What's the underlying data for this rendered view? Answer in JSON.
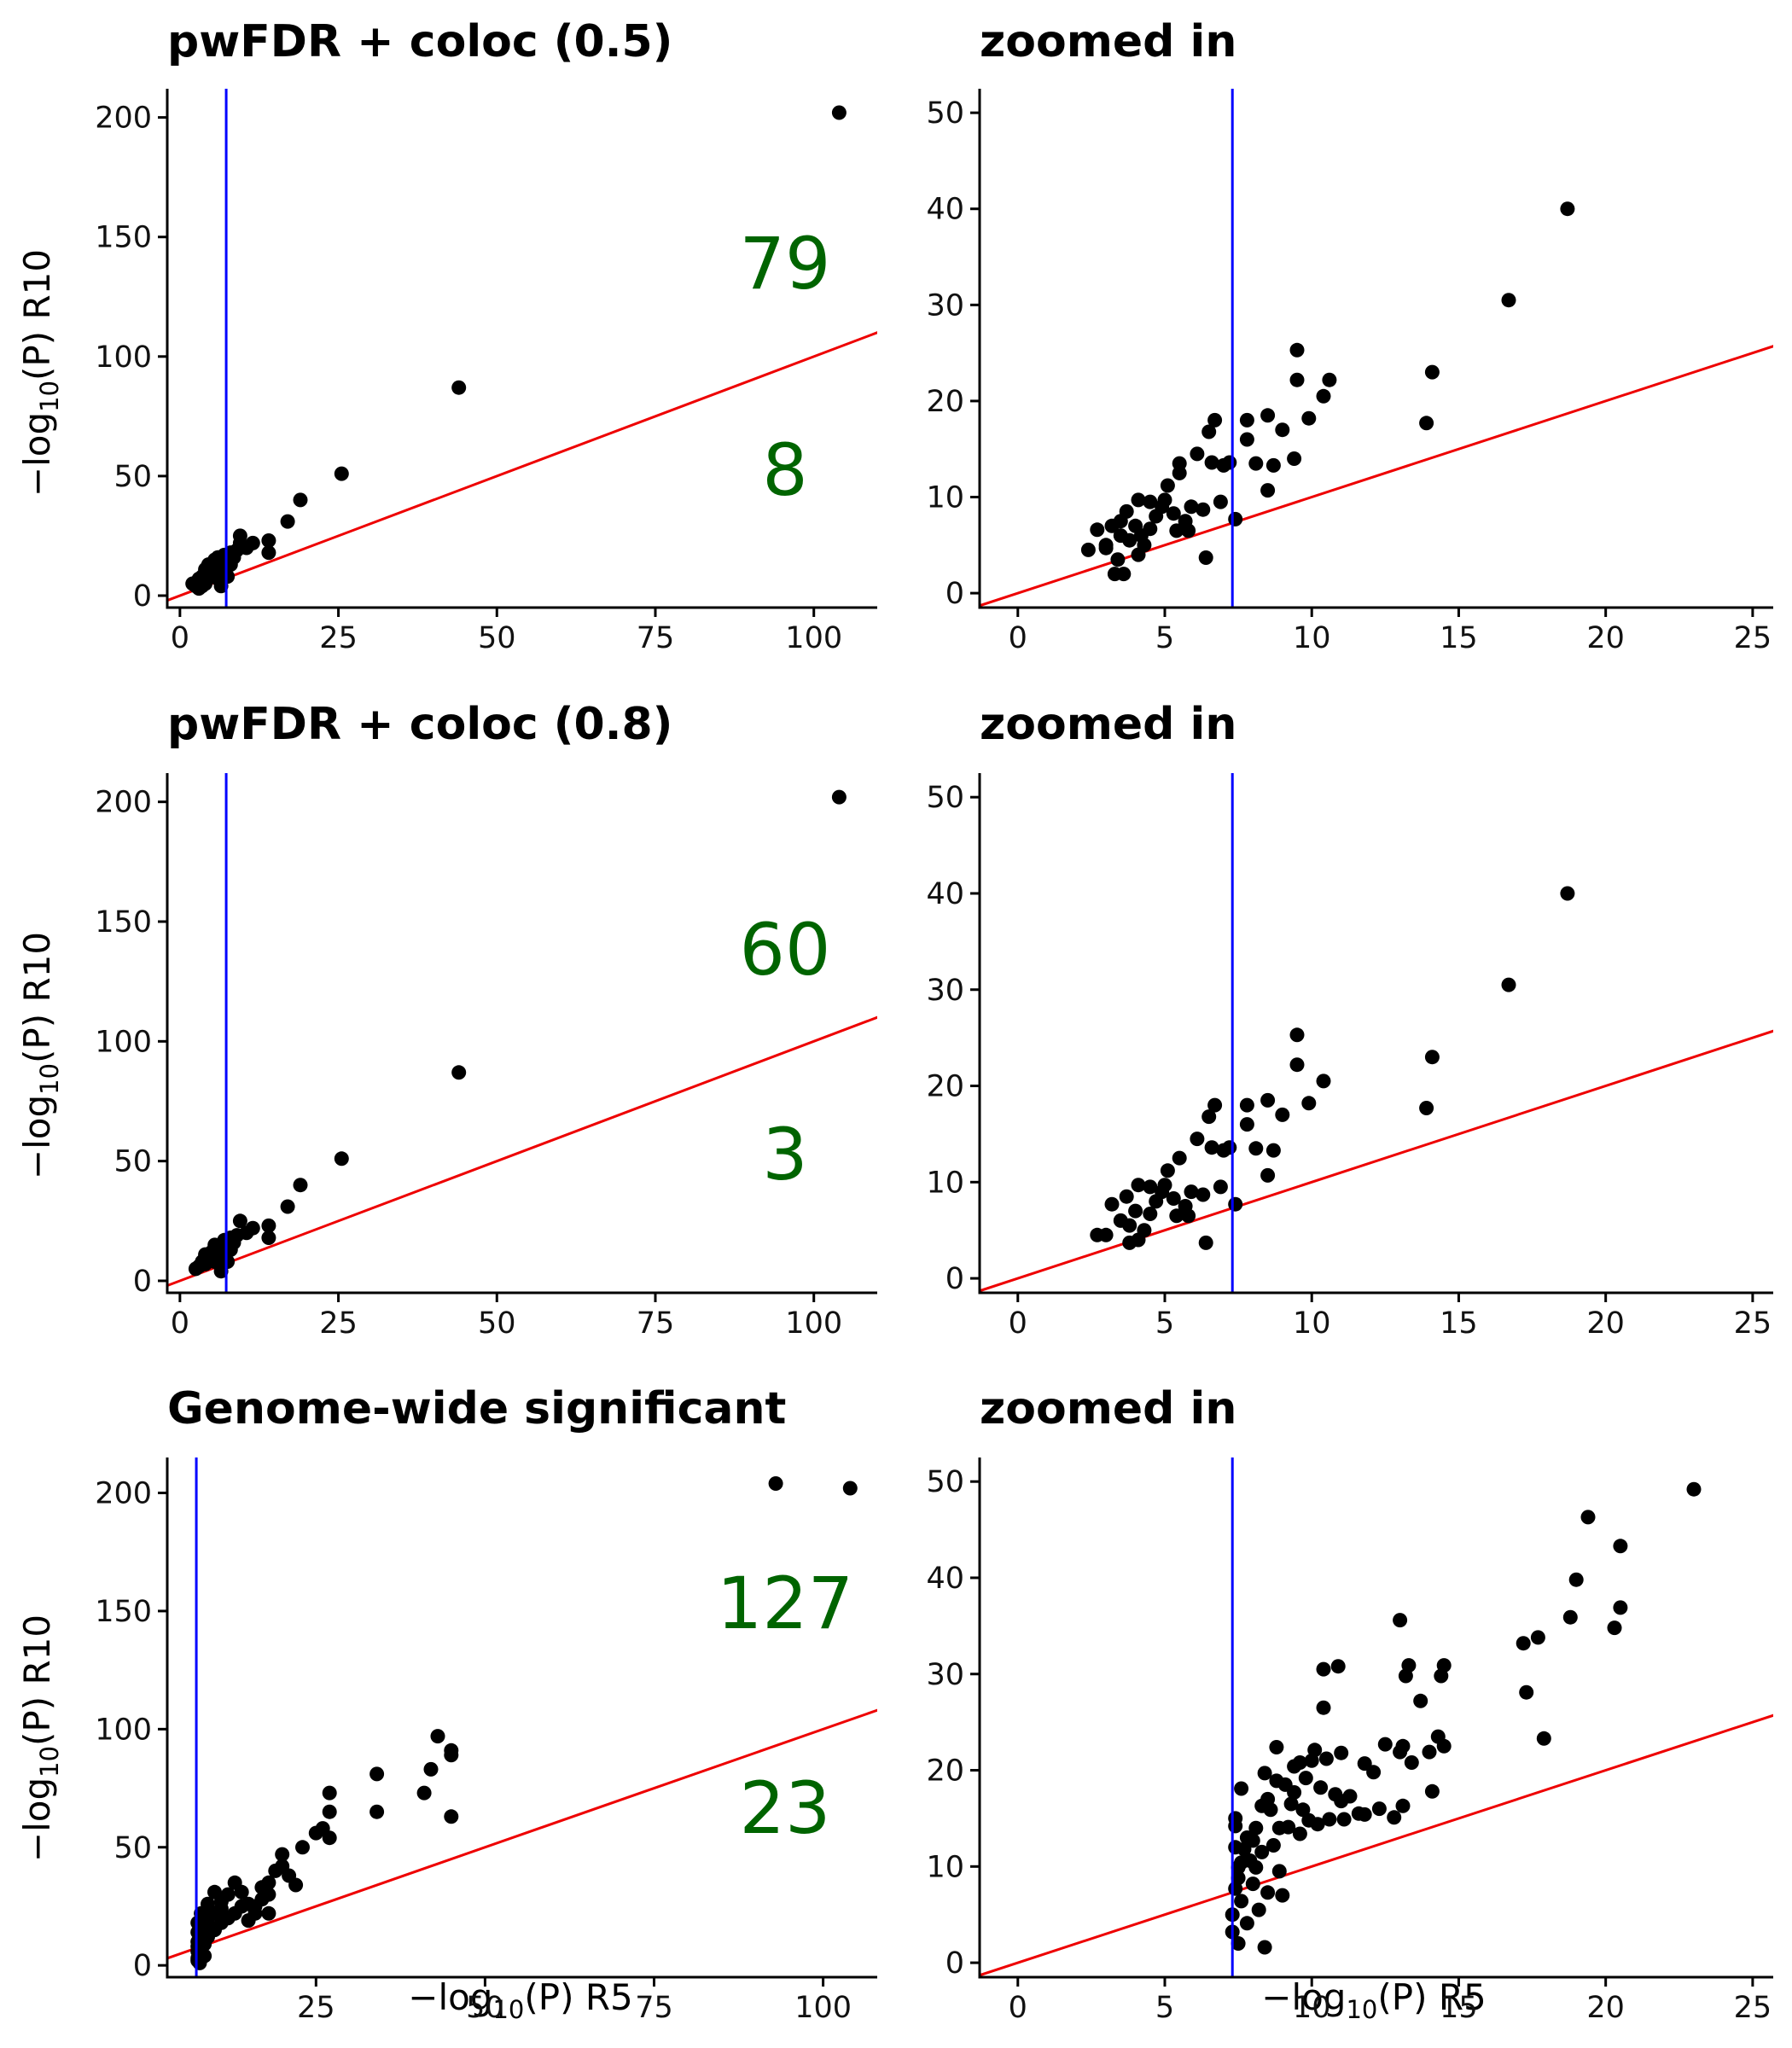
{
  "figure": {
    "accent_colors": {
      "points": "#000000",
      "threshold_line": "#0000ff",
      "reference_line": "#ee0000",
      "count_text": "#006400"
    }
  },
  "chart_data": [
    {
      "id": "p1",
      "type": "scatter",
      "title": "pwFDR + coloc (0.5)",
      "xlabel": "",
      "ylabel": "-log10(P) R10",
      "xlim": [
        -2,
        110
      ],
      "ylim": [
        -5,
        212
      ],
      "xticks": [
        0,
        25,
        50,
        75,
        100
      ],
      "yticks": [
        0,
        50,
        100,
        150,
        200
      ],
      "vline": 7.3,
      "ref_slope": 1,
      "counts": {
        "above": "79",
        "below": "8"
      },
      "points": [
        [
          104,
          202
        ],
        [
          44,
          87
        ],
        [
          25.5,
          51
        ],
        [
          19,
          40
        ],
        [
          17,
          31
        ],
        [
          14,
          23
        ],
        [
          14,
          18
        ],
        [
          11.5,
          22
        ],
        [
          10.5,
          20
        ],
        [
          9.5,
          25
        ],
        [
          9.5,
          22
        ],
        [
          9,
          19
        ],
        [
          8.5,
          16
        ],
        [
          8,
          18
        ],
        [
          7.5,
          14
        ],
        [
          7,
          17
        ],
        [
          6.5,
          13
        ],
        [
          6,
          11
        ],
        [
          6,
          16
        ],
        [
          5.5,
          15
        ],
        [
          5,
          12
        ],
        [
          5,
          10
        ],
        [
          4.5,
          13
        ],
        [
          4.5,
          9
        ],
        [
          4,
          7
        ],
        [
          4,
          11
        ],
        [
          3.5,
          8
        ],
        [
          3.5,
          4
        ],
        [
          3,
          6
        ],
        [
          3,
          3
        ],
        [
          2.5,
          4
        ],
        [
          2.5,
          5
        ],
        [
          2,
          5
        ],
        [
          3,
          7
        ],
        [
          4,
          5
        ],
        [
          6.5,
          4
        ],
        [
          6,
          7
        ],
        [
          7.5,
          8
        ],
        [
          5.5,
          8
        ],
        [
          8,
          13
        ]
      ]
    },
    {
      "id": "p2",
      "type": "scatter",
      "title": "zoomed in",
      "xlabel": "",
      "ylabel": "",
      "xlim": [
        -1.3,
        25.7
      ],
      "ylim": [
        -1.5,
        52.5
      ],
      "xticks": [
        0,
        5,
        10,
        15,
        20,
        25
      ],
      "yticks": [
        0,
        10,
        20,
        30,
        40,
        50
      ],
      "vline": 7.3,
      "ref_slope": 1,
      "points": [
        [
          18.7,
          40
        ],
        [
          16.7,
          30.5
        ],
        [
          14.1,
          23
        ],
        [
          13.9,
          17.7
        ],
        [
          10.6,
          22.2
        ],
        [
          10.4,
          20.5
        ],
        [
          9.9,
          18.2
        ],
        [
          9.5,
          25.3
        ],
        [
          9.5,
          22.2
        ],
        [
          9.4,
          14
        ],
        [
          9,
          17
        ],
        [
          8.7,
          13.3
        ],
        [
          8.5,
          10.7
        ],
        [
          8.5,
          18.5
        ],
        [
          8.1,
          13.5
        ],
        [
          7.8,
          16
        ],
        [
          7.8,
          18
        ],
        [
          7.4,
          7.7
        ],
        [
          7.2,
          13.6
        ],
        [
          7,
          13.3
        ],
        [
          6.9,
          9.5
        ],
        [
          6.7,
          18
        ],
        [
          6.6,
          13.6
        ],
        [
          6.5,
          16.8
        ],
        [
          6.4,
          3.7
        ],
        [
          6.3,
          8.7
        ],
        [
          6.1,
          14.5
        ],
        [
          5.9,
          9
        ],
        [
          5.7,
          7.5
        ],
        [
          5.5,
          12.5
        ],
        [
          5.5,
          13.5
        ],
        [
          5.4,
          6.5
        ],
        [
          5.3,
          8.3
        ],
        [
          5.1,
          11.2
        ],
        [
          5,
          9.7
        ],
        [
          4.9,
          9
        ],
        [
          4.7,
          8
        ],
        [
          4.5,
          6.7
        ],
        [
          4.5,
          9.5
        ],
        [
          4.3,
          5
        ],
        [
          4.1,
          9.7
        ],
        [
          4.1,
          4
        ],
        [
          4,
          7
        ],
        [
          3.8,
          5.5
        ],
        [
          3.7,
          8.5
        ],
        [
          3.5,
          6
        ],
        [
          3.5,
          7.5
        ],
        [
          3.4,
          3.5
        ],
        [
          3.3,
          2
        ],
        [
          3.2,
          7
        ],
        [
          3,
          5
        ],
        [
          3,
          4.7
        ],
        [
          2.7,
          6.6
        ],
        [
          2.4,
          4.5
        ],
        [
          3.6,
          2
        ],
        [
          4.2,
          6
        ],
        [
          5.8,
          6.5
        ]
      ]
    },
    {
      "id": "p3",
      "type": "scatter",
      "title": "pwFDR + coloc (0.8)",
      "xlabel": "",
      "ylabel": "-log10(P) R10",
      "xlim": [
        -2,
        110
      ],
      "ylim": [
        -5,
        212
      ],
      "xticks": [
        0,
        25,
        50,
        75,
        100
      ],
      "yticks": [
        0,
        50,
        100,
        150,
        200
      ],
      "vline": 7.3,
      "ref_slope": 1,
      "counts": {
        "above": "60",
        "below": "3"
      },
      "points": [
        [
          104,
          202
        ],
        [
          44,
          87
        ],
        [
          25.5,
          51
        ],
        [
          19,
          40
        ],
        [
          17,
          31
        ],
        [
          14,
          23
        ],
        [
          14,
          18
        ],
        [
          11.5,
          22
        ],
        [
          10.5,
          20
        ],
        [
          9.5,
          25
        ],
        [
          9,
          19
        ],
        [
          8.5,
          16
        ],
        [
          8,
          18
        ],
        [
          7.5,
          14
        ],
        [
          7,
          17
        ],
        [
          6.5,
          13
        ],
        [
          6,
          11
        ],
        [
          5.5,
          15
        ],
        [
          5,
          12
        ],
        [
          5,
          10
        ],
        [
          4.5,
          9
        ],
        [
          4,
          7
        ],
        [
          4,
          11
        ],
        [
          3.5,
          8
        ],
        [
          3,
          6
        ],
        [
          2.5,
          5
        ],
        [
          6.5,
          4
        ],
        [
          7.5,
          8
        ],
        [
          5.5,
          8
        ],
        [
          8,
          13
        ]
      ]
    },
    {
      "id": "p4",
      "type": "scatter",
      "title": "zoomed in",
      "xlabel": "",
      "ylabel": "",
      "xlim": [
        -1.3,
        25.7
      ],
      "ylim": [
        -1.5,
        52.5
      ],
      "xticks": [
        0,
        5,
        10,
        15,
        20,
        25
      ],
      "yticks": [
        0,
        10,
        20,
        30,
        40,
        50
      ],
      "vline": 7.3,
      "ref_slope": 1,
      "points": [
        [
          18.7,
          40
        ],
        [
          16.7,
          30.5
        ],
        [
          14.1,
          23
        ],
        [
          13.9,
          17.7
        ],
        [
          10.4,
          20.5
        ],
        [
          9.9,
          18.2
        ],
        [
          9.5,
          25.3
        ],
        [
          9.5,
          22.2
        ],
        [
          9,
          17
        ],
        [
          8.7,
          13.3
        ],
        [
          8.5,
          10.7
        ],
        [
          8.5,
          18.5
        ],
        [
          8.1,
          13.5
        ],
        [
          7.8,
          16
        ],
        [
          7.8,
          18
        ],
        [
          7.4,
          7.7
        ],
        [
          7.2,
          13.6
        ],
        [
          7,
          13.3
        ],
        [
          6.9,
          9.5
        ],
        [
          6.7,
          18
        ],
        [
          6.6,
          13.6
        ],
        [
          6.5,
          16.8
        ],
        [
          6.4,
          3.7
        ],
        [
          6.3,
          8.7
        ],
        [
          6.1,
          14.5
        ],
        [
          5.9,
          9
        ],
        [
          5.7,
          7.5
        ],
        [
          5.5,
          12.5
        ],
        [
          5.4,
          6.5
        ],
        [
          5.3,
          8.3
        ],
        [
          5.1,
          11.2
        ],
        [
          5,
          9.7
        ],
        [
          4.9,
          9
        ],
        [
          4.7,
          8
        ],
        [
          4.5,
          6.7
        ],
        [
          4.5,
          9.5
        ],
        [
          4.3,
          5
        ],
        [
          4.1,
          9.7
        ],
        [
          4.1,
          4
        ],
        [
          4,
          7
        ],
        [
          3.8,
          5.5
        ],
        [
          3.7,
          8.5
        ],
        [
          3.5,
          6
        ],
        [
          3.2,
          7.7
        ],
        [
          3,
          4.5
        ],
        [
          2.7,
          4.5
        ],
        [
          5.8,
          6.5
        ],
        [
          3.8,
          3.7
        ]
      ]
    },
    {
      "id": "p5",
      "type": "scatter",
      "title": "Genome-wide significant",
      "xlabel": "-log10(P) R5",
      "ylabel": "-log10(P) R10",
      "xlim": [
        3,
        108
      ],
      "ylim": [
        -5,
        215
      ],
      "xticks": [
        25,
        50,
        75,
        100
      ],
      "yticks": [
        0,
        50,
        100,
        150,
        200
      ],
      "vline": 7.3,
      "ref_slope": 1,
      "counts": {
        "above": "127",
        "below": "23"
      },
      "points": [
        [
          93,
          204
        ],
        [
          104,
          202
        ],
        [
          43,
          97
        ],
        [
          45,
          91
        ],
        [
          45,
          89
        ],
        [
          42,
          83
        ],
        [
          41,
          73
        ],
        [
          45,
          63
        ],
        [
          34,
          81
        ],
        [
          34,
          65
        ],
        [
          27,
          73
        ],
        [
          27,
          65
        ],
        [
          26,
          58
        ],
        [
          27,
          54
        ],
        [
          25,
          56
        ],
        [
          23,
          50
        ],
        [
          20,
          47
        ],
        [
          20,
          42
        ],
        [
          19,
          40
        ],
        [
          18,
          35
        ],
        [
          17,
          33
        ],
        [
          17,
          28
        ],
        [
          16,
          22
        ],
        [
          15,
          26
        ],
        [
          14,
          31
        ],
        [
          13,
          35
        ],
        [
          12,
          30
        ],
        [
          11,
          27
        ],
        [
          11,
          24
        ],
        [
          10,
          31
        ],
        [
          10,
          22
        ],
        [
          9,
          26
        ],
        [
          9,
          20
        ],
        [
          9,
          17
        ],
        [
          8,
          22
        ],
        [
          8,
          15
        ],
        [
          8,
          12
        ],
        [
          7.5,
          18
        ],
        [
          7.5,
          10
        ],
        [
          7.5,
          6
        ],
        [
          7.5,
          3
        ],
        [
          7.5,
          8
        ],
        [
          8,
          5
        ],
        [
          8.5,
          9
        ],
        [
          9,
          12
        ],
        [
          10,
          15
        ],
        [
          11,
          18
        ],
        [
          12,
          20
        ],
        [
          13,
          22
        ],
        [
          14,
          25
        ],
        [
          15,
          19
        ],
        [
          16,
          25
        ],
        [
          18,
          30
        ],
        [
          18,
          22
        ],
        [
          21,
          38
        ],
        [
          22,
          34
        ],
        [
          7.5,
          14
        ],
        [
          8.5,
          21
        ],
        [
          9.5,
          16
        ],
        [
          7.8,
          1
        ],
        [
          8.5,
          4
        ],
        [
          7.5,
          2
        ]
      ]
    },
    {
      "id": "p6",
      "type": "scatter",
      "title": "zoomed in",
      "xlabel": "-log10(P) R5",
      "ylabel": "",
      "xlim": [
        -1.3,
        25.7
      ],
      "ylim": [
        -1.5,
        52.5
      ],
      "xticks": [
        0,
        5,
        10,
        15,
        20,
        25
      ],
      "yticks": [
        0,
        10,
        20,
        30,
        40,
        50
      ],
      "vline": 7.3,
      "ref_slope": 1,
      "points": [
        [
          23,
          49.2
        ],
        [
          19.4,
          46.3
        ],
        [
          20.5,
          43.3
        ],
        [
          19,
          39.8
        ],
        [
          18.8,
          35.9
        ],
        [
          20.5,
          36.9
        ],
        [
          20.3,
          34.8
        ],
        [
          17.7,
          33.8
        ],
        [
          17.2,
          33.2
        ],
        [
          17.3,
          28.1
        ],
        [
          17.9,
          23.3
        ],
        [
          14.5,
          30.9
        ],
        [
          14.4,
          29.8
        ],
        [
          14.3,
          23.5
        ],
        [
          14.5,
          22.5
        ],
        [
          14,
          21.9
        ],
        [
          14.1,
          17.8
        ],
        [
          13.7,
          27.2
        ],
        [
          13.3,
          30.9
        ],
        [
          13.2,
          29.8
        ],
        [
          13,
          35.6
        ],
        [
          13.4,
          20.8
        ],
        [
          13.1,
          22.5
        ],
        [
          13,
          21.9
        ],
        [
          13.1,
          16.3
        ],
        [
          12.5,
          22.7
        ],
        [
          12.1,
          19.8
        ],
        [
          11.8,
          20.7
        ],
        [
          11.8,
          15.4
        ],
        [
          11.3,
          17.3
        ],
        [
          11,
          21.8
        ],
        [
          11,
          16.8
        ],
        [
          10.9,
          30.8
        ],
        [
          10.4,
          30.5
        ],
        [
          10.4,
          26.5
        ],
        [
          10.5,
          21.2
        ],
        [
          10.1,
          22.1
        ],
        [
          10.2,
          14.4
        ],
        [
          10,
          21
        ],
        [
          9.6,
          20.8
        ],
        [
          9.4,
          17.7
        ],
        [
          9.7,
          15.9
        ],
        [
          9.4,
          20.4
        ],
        [
          9.1,
          18.5
        ],
        [
          8.8,
          22.4
        ],
        [
          8.8,
          18.9
        ],
        [
          8.9,
          14
        ],
        [
          8.5,
          17
        ],
        [
          8.4,
          19.7
        ],
        [
          8.3,
          16.3
        ],
        [
          8.1,
          14
        ],
        [
          8,
          12.7
        ],
        [
          7.8,
          13
        ],
        [
          7.7,
          11.8
        ],
        [
          7.6,
          10.4
        ],
        [
          7.5,
          8.8
        ],
        [
          7.4,
          15
        ],
        [
          7.4,
          12
        ],
        [
          7.4,
          7.7
        ],
        [
          7.3,
          5
        ],
        [
          7.3,
          3.2
        ],
        [
          7.5,
          2
        ],
        [
          7.6,
          18.1
        ],
        [
          8.1,
          9.9
        ],
        [
          8.2,
          5.5
        ],
        [
          8.4,
          1.6
        ],
        [
          8.5,
          7.3
        ],
        [
          8.7,
          12.2
        ],
        [
          8.9,
          9.5
        ],
        [
          9,
          7
        ],
        [
          9.2,
          14.1
        ],
        [
          9.6,
          13.4
        ],
        [
          9.9,
          14.8
        ],
        [
          10.6,
          14.9
        ],
        [
          11.1,
          14.9
        ],
        [
          11.6,
          15.5
        ],
        [
          12.3,
          16
        ],
        [
          12.8,
          15.1
        ],
        [
          7.4,
          14.2
        ],
        [
          7.9,
          10.6
        ],
        [
          8.3,
          11.5
        ],
        [
          7.6,
          6.4
        ],
        [
          7.5,
          9.9
        ],
        [
          7.8,
          4.1
        ],
        [
          8,
          8.2
        ],
        [
          8.6,
          15.9
        ],
        [
          9.3,
          16.5
        ],
        [
          9.8,
          19.2
        ],
        [
          10.3,
          18.2
        ],
        [
          10.8,
          17.5
        ]
      ]
    }
  ]
}
